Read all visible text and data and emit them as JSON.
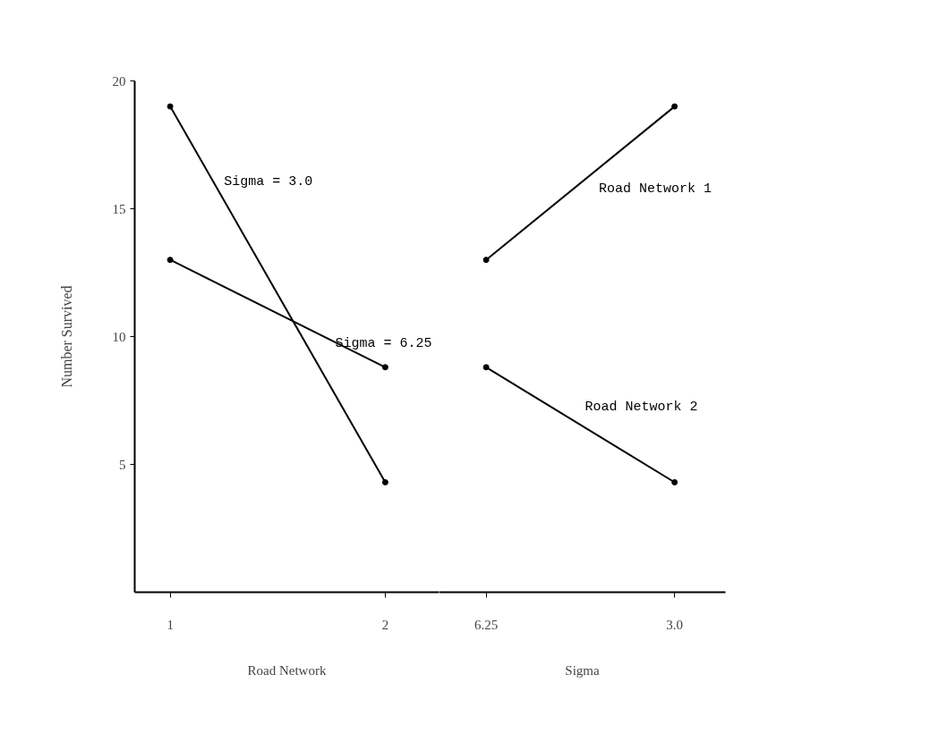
{
  "chart_data": [
    {
      "type": "line",
      "categories": [
        "1",
        "2"
      ],
      "xlabel": "Road Network",
      "ylabel": "Number Survived",
      "ylim": [
        0,
        20
      ],
      "yticks": [
        5,
        10,
        15,
        20
      ],
      "marker": "circle",
      "grid": false,
      "series": [
        {
          "name": "Sigma = 3.0",
          "color": "#000000",
          "values": [
            19,
            4.3
          ]
        },
        {
          "name": "Sigma = 6.25",
          "color": "#000000",
          "values": [
            13,
            8.8
          ]
        }
      ]
    },
    {
      "type": "line",
      "categories": [
        "6.25",
        "3.0"
      ],
      "xlabel": "Sigma",
      "ylim": [
        0,
        20
      ],
      "yticks": [
        5,
        10,
        15,
        20
      ],
      "tick_labels": "x",
      "marker": "circle",
      "grid": false,
      "series": [
        {
          "name": "Road Network 1",
          "color": "#000000",
          "values": [
            13,
            19
          ]
        },
        {
          "name": "Road Network 2",
          "color": "#000000",
          "values": [
            8.8,
            4.3
          ]
        }
      ]
    }
  ]
}
